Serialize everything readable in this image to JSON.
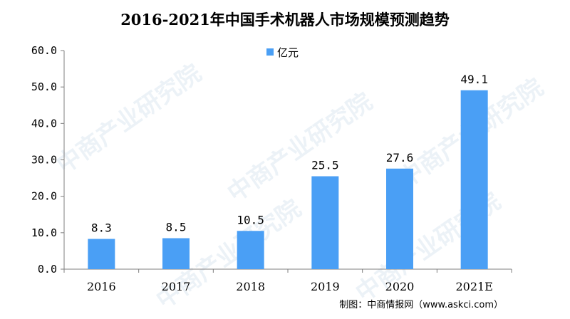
{
  "title": "2016-2021年中国手术机器人市场规模预测趋势",
  "source": "制图：中商情报网（www.askci.com）",
  "watermark": "中商产业研究院",
  "chart_data": {
    "type": "bar",
    "title": "2016-2021年中国手术机器人市场规模预测趋势",
    "categories": [
      "2016",
      "2017",
      "2018",
      "2019",
      "2020",
      "2021E"
    ],
    "series": [
      {
        "name": "亿元",
        "values": [
          8.3,
          8.5,
          10.5,
          25.5,
          27.6,
          49.1
        ],
        "labels": [
          "8.3",
          "8.5",
          "10.5",
          "25.5",
          "27.6",
          "49.1"
        ],
        "color": "#4a9ff5"
      }
    ],
    "yticks": [
      "0.0",
      "10.0",
      "20.0",
      "30.0",
      "40.0",
      "50.0",
      "60.0"
    ],
    "ylim": [
      0,
      60
    ],
    "grid": false,
    "legend_position": "top-center"
  }
}
